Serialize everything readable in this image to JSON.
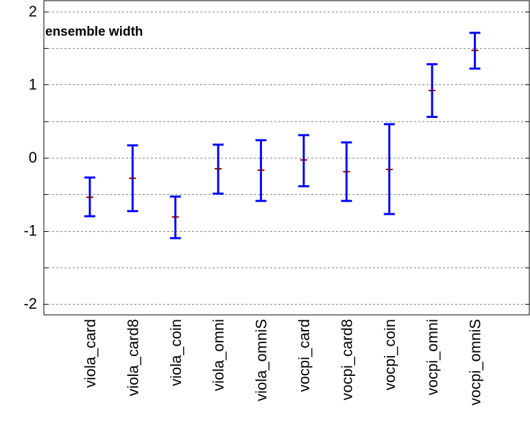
{
  "chart_data": {
    "type": "errorbar",
    "title": "ensemble width",
    "xlabel": "",
    "ylabel": "",
    "ylim": [
      -2.15,
      2.15
    ],
    "yticks": [
      -2,
      -1.5,
      -1,
      -0.5,
      0,
      0.5,
      1,
      1.5,
      2
    ],
    "ytick_labels": [
      {
        "value": -2,
        "label": "-2"
      },
      {
        "value": -1,
        "label": "-1"
      },
      {
        "value": 0,
        "label": "0"
      },
      {
        "value": 1,
        "label": "1"
      },
      {
        "value": 2,
        "label": "2"
      }
    ],
    "grid": true,
    "legend": "none",
    "categories": [
      "viola_card",
      "viola_card8",
      "viola_coin",
      "viola_omni",
      "viola_omniS",
      "vocpi_card",
      "vocpi_card8",
      "vocpi_coin",
      "vocpi_omni",
      "vocpi_omniS"
    ],
    "series": [
      {
        "mean": [
          -0.54,
          -0.28,
          -0.81,
          -0.15,
          -0.17,
          -0.03,
          -0.19,
          -0.16,
          0.92,
          1.47
        ],
        "lower": [
          -0.8,
          -0.73,
          -1.1,
          -0.49,
          -0.59,
          -0.39,
          -0.59,
          -0.77,
          0.56,
          1.22
        ],
        "upper": [
          -0.27,
          0.17,
          -0.53,
          0.18,
          0.24,
          0.31,
          0.21,
          0.46,
          1.28,
          1.71
        ]
      }
    ],
    "colors": {
      "errorbar": "#0000ff",
      "mean_marker": "#800000",
      "grid": "#808080",
      "axis": "#000000"
    }
  }
}
